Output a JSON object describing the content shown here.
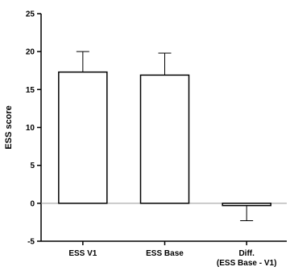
{
  "chart_data": {
    "type": "bar",
    "title": "",
    "xlabel": "",
    "ylabel": "ESS score",
    "ylim": [
      -5,
      25
    ],
    "yticks": [
      -5,
      0,
      5,
      10,
      15,
      20,
      25
    ],
    "grid": false,
    "legend": "none",
    "categories": [
      {
        "lines": [
          "ESS V1"
        ]
      },
      {
        "lines": [
          "ESS Base"
        ]
      },
      {
        "lines": [
          "Diff.",
          "(ESS Base - V1)"
        ]
      }
    ],
    "values": [
      17.3,
      16.9,
      -0.3
    ],
    "error_bars": [
      2.7,
      2.9,
      2.0
    ],
    "colors": {
      "bar_fill": "#ffffff",
      "bar_stroke": "#000000",
      "axis": "#000000",
      "zero_line": "#999999"
    }
  }
}
